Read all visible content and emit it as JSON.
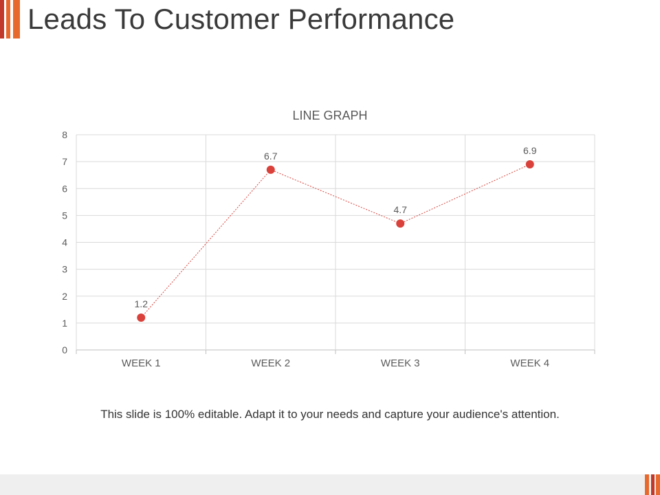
{
  "slide": {
    "title": "Leads To Customer Performance",
    "caption": "This slide is 100% editable. Adapt it to your needs and capture your audience's attention."
  },
  "colors": {
    "accent_red": "#c0392b",
    "accent_orange": "#e8692c",
    "series": "#d9413a",
    "grid": "#d9d9d9",
    "text": "#595959"
  },
  "chart_data": {
    "type": "line",
    "title": "LINE GRAPH",
    "categories": [
      "WEEK 1",
      "WEEK 2",
      "WEEK 3",
      "WEEK 4"
    ],
    "values": [
      1.2,
      6.7,
      4.7,
      6.9
    ],
    "data_labels": [
      "1.2",
      "6.7",
      "4.7",
      "6.9"
    ],
    "ylim": [
      0,
      8
    ],
    "yticks": [
      "0",
      "1",
      "2",
      "3",
      "4",
      "5",
      "6",
      "7",
      "8"
    ],
    "grid": true,
    "line_style": "dotted",
    "markers": "circle"
  }
}
